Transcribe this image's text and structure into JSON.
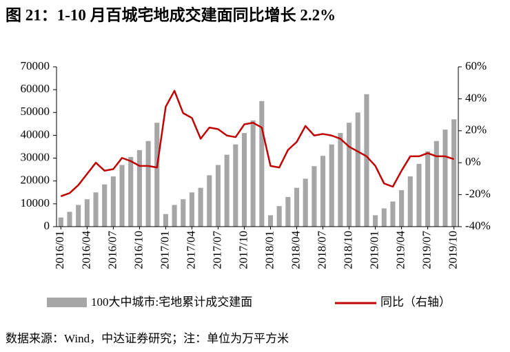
{
  "chart_data": {
    "type": "bar_line",
    "title": "图 21：1-10 月百城宅地成交建面同比增长 2.2%",
    "source": "数据来源：Wind，中达证券研究；注：单位为万平方米",
    "categories": [
      "2016/01",
      null,
      null,
      "2016/04",
      null,
      null,
      "2016/07",
      null,
      null,
      "2016/10",
      null,
      null,
      "2017/01",
      null,
      null,
      "2017/04",
      null,
      null,
      "2017/07",
      null,
      null,
      "2017/10",
      null,
      null,
      "2018/01",
      null,
      null,
      "2018/04",
      null,
      null,
      "2018/07",
      null,
      null,
      "2018/10",
      null,
      null,
      "2019/01",
      null,
      null,
      "2019/04",
      null,
      null,
      "2019/07",
      null,
      null,
      "2019/10"
    ],
    "series": [
      {
        "name": "100大中城市:宅地累计成交建面",
        "color": "#a6a6a6",
        "type": "bar",
        "values": [
          4000,
          6500,
          9500,
          12000,
          15000,
          18500,
          22000,
          27000,
          30500,
          33500,
          37500,
          45500,
          5500,
          9500,
          12000,
          15000,
          17000,
          22500,
          27000,
          31500,
          36000,
          41000,
          46500,
          55000,
          5000,
          9000,
          13000,
          17000,
          21000,
          26500,
          31000,
          36000,
          41000,
          45500,
          50000,
          58000,
          5000,
          8000,
          11000,
          16000,
          22000,
          27500,
          33000,
          37500,
          42500,
          47000
        ]
      },
      {
        "name": "同比（右轴）",
        "color": "#c00000",
        "type": "line",
        "axis": "y2",
        "values": [
          -21,
          -19,
          -14,
          -7,
          0,
          -5,
          -4,
          3,
          1,
          -2,
          -2,
          -3,
          35,
          45,
          31,
          28,
          15,
          22,
          21,
          17,
          16,
          24,
          25,
          22,
          -2,
          -3,
          8,
          13,
          23,
          17,
          18,
          17,
          15,
          10,
          7,
          4,
          -2,
          -13,
          -15,
          -5,
          4,
          4,
          6,
          4,
          4,
          2.2
        ]
      }
    ],
    "ylim": [
      0,
      70000
    ],
    "yticks": [
      0,
      10000,
      20000,
      30000,
      40000,
      50000,
      60000,
      70000
    ],
    "y2lim": [
      -40,
      60
    ],
    "y2ticks": [
      {
        "value": -40,
        "label": "-40%"
      },
      {
        "value": -20,
        "label": "-20%"
      },
      {
        "value": 0,
        "label": "0%"
      },
      {
        "value": 20,
        "label": "20%"
      },
      {
        "value": 40,
        "label": "40%"
      },
      {
        "value": 60,
        "label": "60%"
      }
    ]
  }
}
